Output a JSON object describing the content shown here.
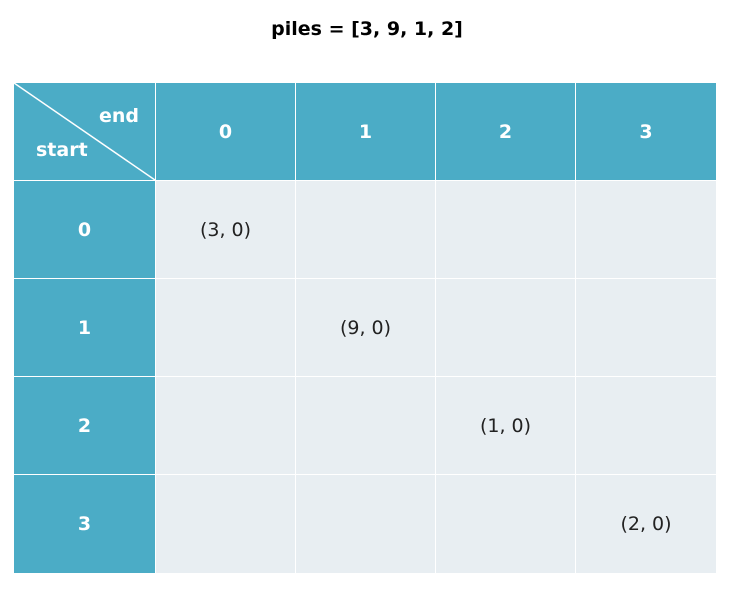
{
  "title": "piles = [3, 9, 1, 2]",
  "corner": {
    "column_axis_label": "end",
    "row_axis_label": "start"
  },
  "columns": [
    "0",
    "1",
    "2",
    "3"
  ],
  "rows": [
    {
      "label": "0",
      "cells": [
        "(3, 0)",
        "",
        "",
        ""
      ]
    },
    {
      "label": "1",
      "cells": [
        "",
        "(9, 0)",
        "",
        ""
      ]
    },
    {
      "label": "2",
      "cells": [
        "",
        "",
        "(1, 0)",
        ""
      ]
    },
    {
      "label": "3",
      "cells": [
        "",
        "",
        "",
        "(2, 0)"
      ]
    }
  ],
  "colors": {
    "header_fill": "#4bacc6",
    "body_fill": "#e8eef2",
    "header_text": "#ffffff",
    "body_text": "#222222"
  }
}
